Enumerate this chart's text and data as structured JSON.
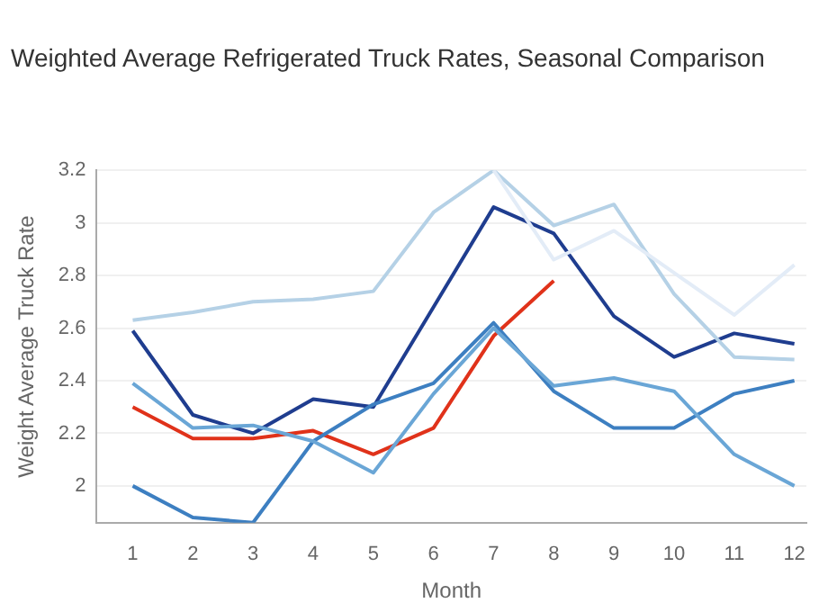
{
  "chart_data": {
    "type": "line",
    "title": "Weighted Average Refrigerated Truck Rates, Seasonal Comparison",
    "xlabel": "Month",
    "ylabel": "Weight Average Truck Rate",
    "x": [
      1,
      2,
      3,
      4,
      5,
      6,
      7,
      8,
      9,
      10,
      11,
      12
    ],
    "xlim": [
      0.4,
      12.2
    ],
    "xticks": [
      1,
      2,
      3,
      4,
      5,
      6,
      7,
      8,
      9,
      10,
      11,
      12
    ],
    "ylim": [
      1.86,
      3.2
    ],
    "yticks": [
      2,
      2.2,
      2.4,
      2.6,
      2.8,
      3,
      3.2
    ],
    "grid": "y",
    "legend": false,
    "marker": "none",
    "line_style": "solid",
    "series": [
      {
        "color": "#e3ecf7",
        "values": [
          null,
          null,
          null,
          null,
          null,
          null,
          3.2,
          2.86,
          2.97,
          2.81,
          2.65,
          2.84
        ]
      },
      {
        "color": "#b5d1e6",
        "values": [
          2.63,
          2.66,
          2.7,
          2.71,
          2.74,
          3.04,
          3.2,
          2.99,
          3.07,
          2.73,
          2.49,
          2.48
        ]
      },
      {
        "color": "#6aa6d6",
        "values": [
          2.39,
          2.22,
          2.23,
          2.17,
          2.05,
          2.35,
          2.6,
          2.38,
          2.41,
          2.36,
          2.12,
          2.0
        ]
      },
      {
        "color": "#3d7fc1",
        "values": [
          2.0,
          1.88,
          1.86,
          2.17,
          2.31,
          2.39,
          2.62,
          2.36,
          2.22,
          2.22,
          2.35,
          2.4
        ]
      },
      {
        "color": "#1f3d8f",
        "values": [
          2.59,
          2.27,
          2.2,
          2.33,
          2.3,
          2.68,
          3.06,
          2.96,
          2.645,
          2.49,
          2.58,
          2.54
        ]
      },
      {
        "color": "#e0321a",
        "values": [
          2.3,
          2.18,
          2.18,
          2.21,
          2.12,
          2.22,
          2.57,
          2.78,
          null,
          null,
          null,
          null
        ]
      }
    ]
  }
}
